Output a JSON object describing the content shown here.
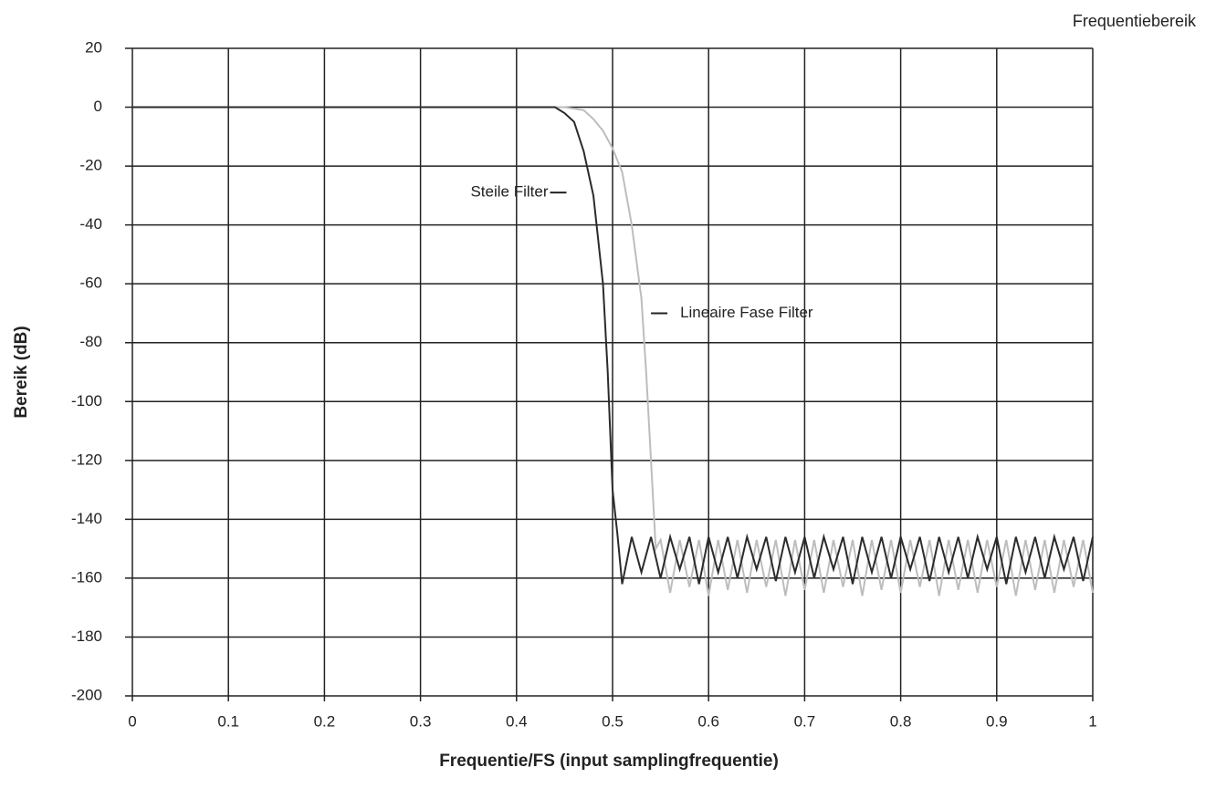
{
  "chart_data": {
    "type": "line",
    "title": "Frequentiebereik",
    "x_label": "Frequentie/FS (input samplingfrequentie)",
    "y_label": "Bereik (dB)",
    "xlim": [
      0,
      1
    ],
    "ylim": [
      -200,
      20
    ],
    "xticks": [
      0,
      0.1,
      0.2,
      0.3,
      0.4,
      0.5,
      0.6,
      0.7,
      0.8,
      0.9,
      1
    ],
    "yticks": [
      20,
      0,
      -20,
      -40,
      -60,
      -80,
      -100,
      -120,
      -140,
      -160,
      -180,
      -200
    ],
    "grid": true,
    "series": [
      {
        "name": "Steile Filter",
        "color": "#2b2b2b",
        "x": [
          0,
          0.1,
          0.2,
          0.3,
          0.4,
          0.44,
          0.45,
          0.46,
          0.47,
          0.48,
          0.49,
          0.495,
          0.5,
          0.505,
          0.51,
          0.52,
          0.53,
          0.54,
          0.55,
          0.56,
          0.57,
          0.58,
          0.59,
          0.6,
          0.61,
          0.62,
          0.63,
          0.64,
          0.65,
          0.66,
          0.67,
          0.68,
          0.69,
          0.7,
          0.71,
          0.72,
          0.73,
          0.74,
          0.75,
          0.76,
          0.77,
          0.78,
          0.79,
          0.8,
          0.81,
          0.82,
          0.83,
          0.84,
          0.85,
          0.86,
          0.87,
          0.88,
          0.89,
          0.9,
          0.91,
          0.92,
          0.93,
          0.94,
          0.95,
          0.96,
          0.97,
          0.98,
          0.99,
          1.0
        ],
        "values": [
          0,
          0,
          0,
          0,
          0,
          0,
          -2,
          -5,
          -15,
          -30,
          -60,
          -90,
          -130,
          -145,
          -162,
          -146,
          -158,
          -146,
          -160,
          -146,
          -157,
          -146,
          -162,
          -146,
          -158,
          -146,
          -160,
          -146,
          -157,
          -146,
          -161,
          -146,
          -158,
          -146,
          -160,
          -146,
          -157,
          -146,
          -162,
          -146,
          -158,
          -146,
          -160,
          -146,
          -157,
          -146,
          -161,
          -146,
          -158,
          -146,
          -160,
          -146,
          -157,
          -146,
          -162,
          -146,
          -158,
          -146,
          -160,
          -146,
          -157,
          -146,
          -161,
          -146
        ]
      },
      {
        "name": "Lineaire Fase Filter",
        "color": "#bdbdbd",
        "x": [
          0,
          0.1,
          0.2,
          0.3,
          0.4,
          0.45,
          0.47,
          0.48,
          0.49,
          0.5,
          0.51,
          0.52,
          0.53,
          0.535,
          0.54,
          0.545,
          0.55,
          0.56,
          0.57,
          0.58,
          0.59,
          0.6,
          0.61,
          0.62,
          0.63,
          0.64,
          0.65,
          0.66,
          0.67,
          0.68,
          0.69,
          0.7,
          0.71,
          0.72,
          0.73,
          0.74,
          0.75,
          0.76,
          0.77,
          0.78,
          0.79,
          0.8,
          0.81,
          0.82,
          0.83,
          0.84,
          0.85,
          0.86,
          0.87,
          0.88,
          0.89,
          0.9,
          0.91,
          0.92,
          0.93,
          0.94,
          0.95,
          0.96,
          0.97,
          0.98,
          0.99,
          1.0
        ],
        "values": [
          0,
          0,
          0,
          0,
          0,
          0,
          -1,
          -4,
          -8,
          -14,
          -22,
          -40,
          -65,
          -90,
          -120,
          -150,
          -147,
          -165,
          -147,
          -163,
          -147,
          -166,
          -147,
          -164,
          -147,
          -165,
          -147,
          -163,
          -147,
          -166,
          -147,
          -164,
          -147,
          -165,
          -147,
          -163,
          -147,
          -166,
          -147,
          -164,
          -147,
          -165,
          -147,
          -163,
          -147,
          -166,
          -147,
          -164,
          -147,
          -165,
          -147,
          -163,
          -147,
          -166,
          -147,
          -164,
          -147,
          -165,
          -147,
          -163,
          -147,
          -165
        ]
      }
    ],
    "annotations": [
      {
        "text": "Steile Filter",
        "x": 0.452,
        "y": -29
      },
      {
        "text": "Lineaire Fase Filter",
        "x": 0.54,
        "y": -70
      }
    ]
  }
}
